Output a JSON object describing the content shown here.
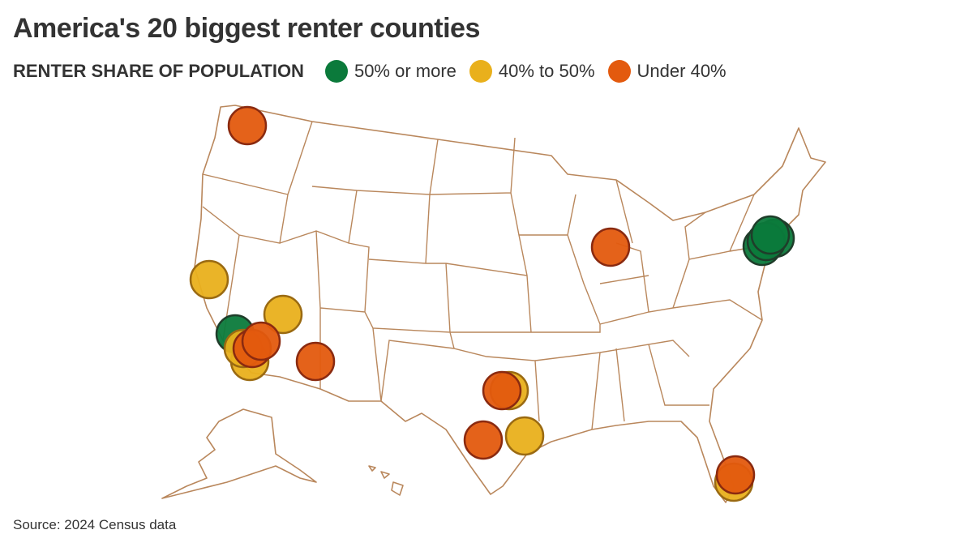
{
  "header": {
    "title": "America's 20 biggest renter counties"
  },
  "legend": {
    "label": "RENTER SHARE OF POPULATION",
    "items": [
      {
        "label": "50% or more",
        "color": "#0b7a3b"
      },
      {
        "label": "40% to 50%",
        "color": "#e9b01c"
      },
      {
        "label": "Under 40%",
        "color": "#e35a0e"
      }
    ]
  },
  "source": "Source: 2024 Census data"
}
